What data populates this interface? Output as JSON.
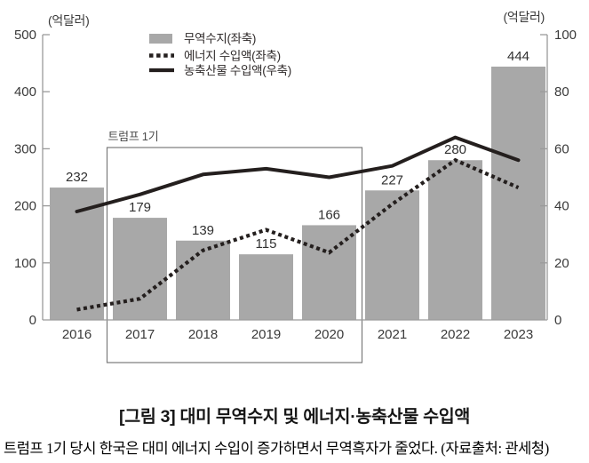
{
  "title": "[그림 3] 대미 무역수지 및 에너지·농축산물 수입액",
  "caption": "트럼프 1기 당시 한국은 대미 에너지 수입이 증가하면서 무역흑자가 줄었다. (자료출처: 관세청)",
  "colors": {
    "bar": "#a8a8a8",
    "line": "#241f1e",
    "axis": "#9a9a9a",
    "box": "#7a7a7a",
    "tick_text": "#3a3a3a",
    "annotation_text": "#4a4a4a",
    "bar_label_text": "#303030"
  },
  "chart_data": {
    "type": "bar",
    "categories": [
      "2016",
      "2017",
      "2018",
      "2019",
      "2020",
      "2021",
      "2022",
      "2023"
    ],
    "series": [
      {
        "name": "무역수지(좌축)",
        "kind": "bar",
        "style": "solid-fill",
        "axis": "left",
        "values": [
          232,
          179,
          139,
          115,
          166,
          227,
          280,
          444
        ],
        "data_labels": true
      },
      {
        "name": "에너지 수입액(좌축)",
        "kind": "line",
        "style": "dotted",
        "axis": "left",
        "values": [
          18,
          37,
          122,
          158,
          118,
          203,
          280,
          232
        ],
        "data_labels": false
      },
      {
        "name": "농축산물 수입액(우축)",
        "kind": "line",
        "style": "solid",
        "axis": "right",
        "values": [
          38,
          44,
          51,
          53,
          50,
          54,
          64,
          56
        ],
        "data_labels": false
      }
    ],
    "left_axis": {
      "unit": "(억달러)",
      "min": 0,
      "max": 500,
      "ticks": [
        0,
        100,
        200,
        300,
        400,
        500
      ]
    },
    "right_axis": {
      "unit": "(억달러)",
      "min": 0,
      "max": 100,
      "ticks": [
        0,
        20,
        40,
        60,
        80,
        100
      ]
    },
    "annotation": {
      "label": "트럼프 1기",
      "from": "2017",
      "to": "2020"
    },
    "legend_position": "top-center",
    "grid": false
  }
}
